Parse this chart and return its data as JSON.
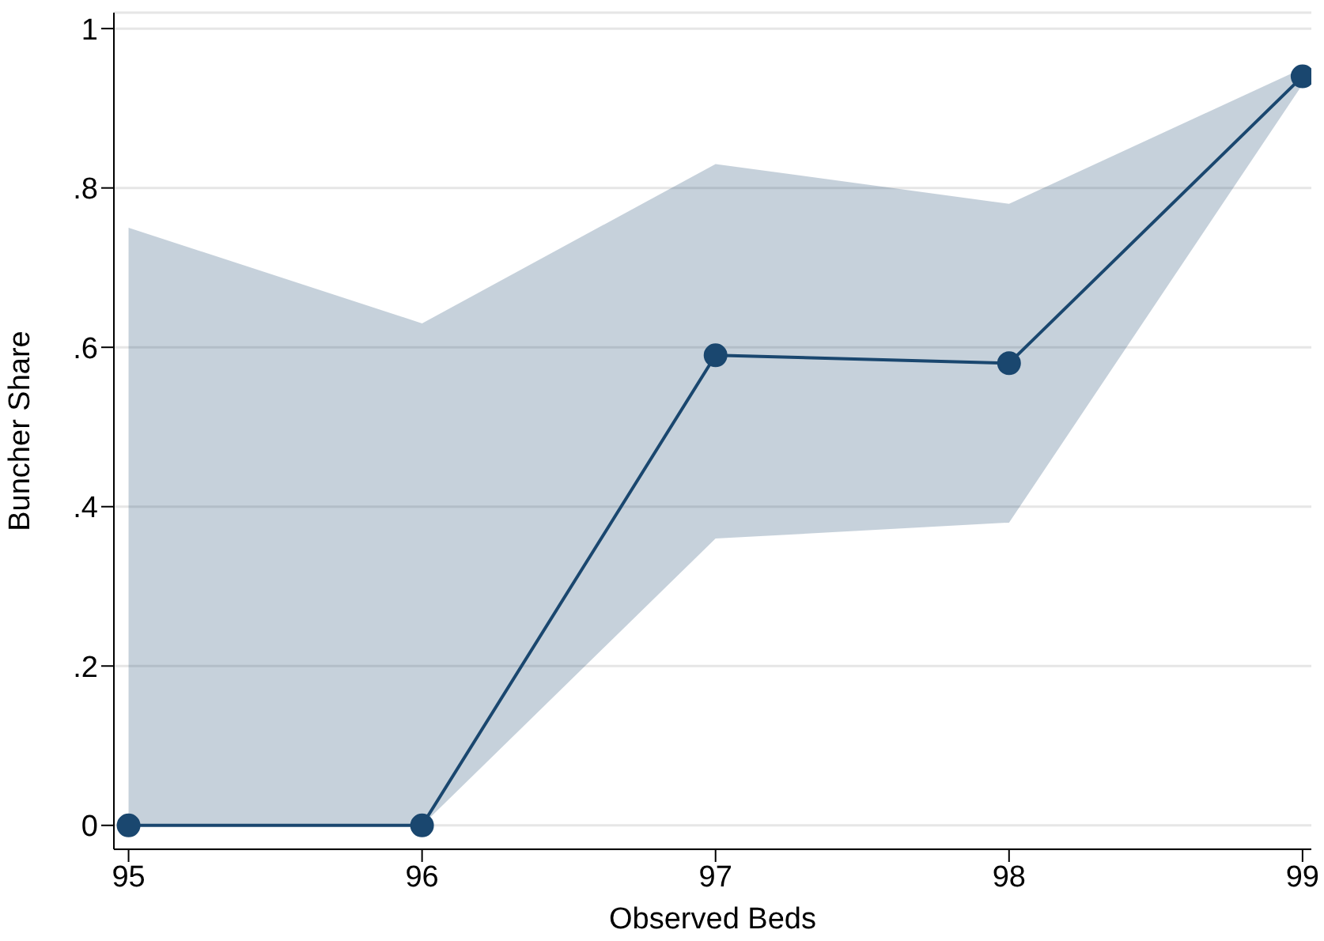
{
  "chart_data": {
    "type": "line",
    "xlabel": "Observed Beds",
    "ylabel": "Buncher Share",
    "x": [
      95,
      96,
      97,
      98,
      99
    ],
    "series": [
      {
        "color": "#1a476f",
        "values": [
          0,
          0,
          0.59,
          0.58,
          0.94
        ],
        "lower": [
          0,
          0,
          0.36,
          0.38,
          0.93
        ],
        "upper": [
          0.75,
          0.63,
          0.83,
          0.78,
          0.95
        ]
      }
    ],
    "xlim": [
      94.95,
      99.03
    ],
    "xticks": [
      95,
      96,
      97,
      98,
      99
    ],
    "ylim": [
      -0.03,
      1.02
    ],
    "yticks": [
      0,
      {
        "value": 0.2,
        "label": ".2"
      },
      {
        "value": 0.4,
        "label": ".4"
      },
      {
        "value": 0.6,
        "label": ".6"
      },
      {
        "value": 0.8,
        "label": ".8"
      },
      1
    ],
    "grid": "y",
    "marker": "circle",
    "line_style": "solid"
  }
}
